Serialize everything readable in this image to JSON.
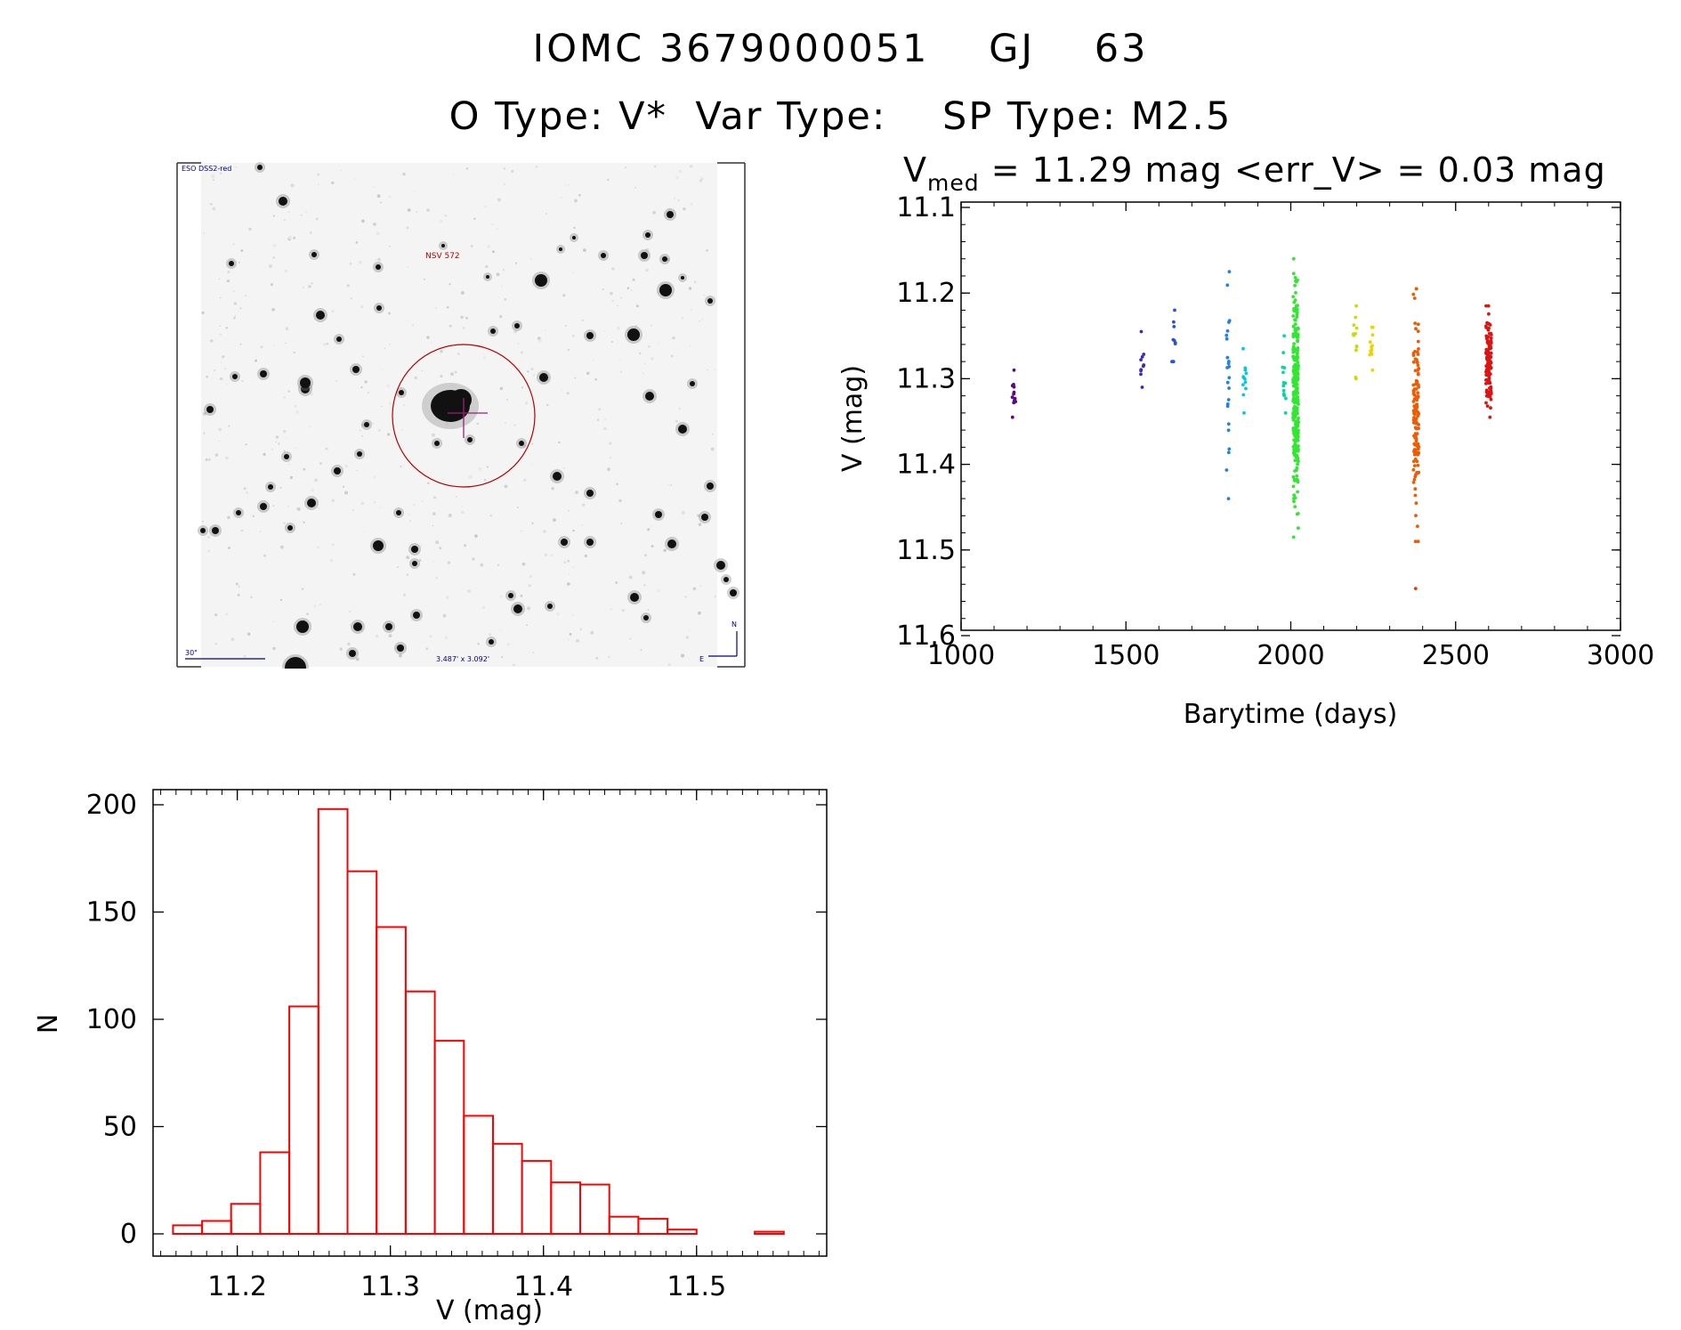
{
  "header": {
    "line1": "IOMC 3679000051    GJ    63",
    "line2": "O Type: V*  Var Type:    SP Type: M2.5"
  },
  "finder": {
    "survey_label": "ESO DSS2-red",
    "target_label": "NSV 572",
    "scale_label": "30\"",
    "fov_label": "3.487' x 3.092'",
    "north_label": "N",
    "east_label": "E",
    "colors": {
      "background": "#f4f4f4",
      "circle": "#b40000",
      "crosshair": "#9a1f7a",
      "annotation": "#00008b"
    }
  },
  "lightcurve": {
    "title_prefix": "V",
    "title_sub": "med",
    "title_rest": " = 11.29 mag <err_V> = 0.03 mag",
    "xlabel": "Barytime (days)",
    "ylabel": "V (mag)",
    "xticks": [
      "1000",
      "1500",
      "2000",
      "2500",
      "3000"
    ],
    "yticks": [
      "11.1",
      "11.2",
      "11.3",
      "11.4",
      "11.5",
      "11.6"
    ]
  },
  "histogram": {
    "xlabel": "V (mag)",
    "ylabel": "N",
    "xticks": [
      "11.2",
      "11.3",
      "11.4",
      "11.5"
    ],
    "yticks": [
      "0",
      "50",
      "100",
      "150",
      "200"
    ],
    "bar_color": "#ff0000"
  },
  "chart_data": [
    {
      "type": "scatter",
      "title": "V_med = 11.29 mag <err_V> = 0.03 mag",
      "xlabel": "Barytime (days)",
      "ylabel": "V (mag)",
      "xlim": [
        1000,
        3000
      ],
      "ylim": [
        11.6,
        11.1
      ],
      "y_inverted": true,
      "groups": [
        {
          "x": 1160,
          "ymin": 11.29,
          "ymax": 11.345,
          "n": 12,
          "color": "#5a0a82"
        },
        {
          "x": 1550,
          "ymin": 11.245,
          "ymax": 11.31,
          "n": 10,
          "color": "#3c28c8"
        },
        {
          "x": 1645,
          "ymin": 11.22,
          "ymax": 11.28,
          "n": 9,
          "color": "#2850dc"
        },
        {
          "x": 1810,
          "ymin": 11.175,
          "ymax": 11.44,
          "n": 24,
          "color": "#1e82e6"
        },
        {
          "x": 1860,
          "ymin": 11.265,
          "ymax": 11.34,
          "n": 12,
          "color": "#00c8e6"
        },
        {
          "x": 1980,
          "ymin": 11.25,
          "ymax": 11.34,
          "n": 14,
          "color": "#00dc96"
        },
        {
          "x": 2015,
          "ymin": 11.16,
          "ymax": 11.485,
          "n": 260,
          "color": "#32e632"
        },
        {
          "x": 2195,
          "ymin": 11.215,
          "ymax": 11.3,
          "n": 12,
          "color": "#c8dc00"
        },
        {
          "x": 2245,
          "ymin": 11.24,
          "ymax": 11.29,
          "n": 12,
          "color": "#f0d200"
        },
        {
          "x": 2380,
          "ymin": 11.195,
          "ymax": 11.49,
          "n": 130,
          "color": "#f05a00"
        },
        {
          "x": 2380,
          "ymin": 11.545,
          "ymax": 11.545,
          "n": 1,
          "color": "#f03c00"
        },
        {
          "x": 2600,
          "ymin": 11.215,
          "ymax": 11.345,
          "n": 130,
          "color": "#dc1414"
        }
      ]
    },
    {
      "type": "bar",
      "subtype": "histogram",
      "xlabel": "V (mag)",
      "ylabel": "N",
      "xlim": [
        11.145,
        11.585
      ],
      "ylim": [
        0,
        205
      ],
      "bin_width": 0.019,
      "bins_start": [
        11.158,
        11.177,
        11.196,
        11.215,
        11.234,
        11.253,
        11.272,
        11.291,
        11.31,
        11.329,
        11.348,
        11.367,
        11.386,
        11.405,
        11.424,
        11.443,
        11.462,
        11.481,
        11.5,
        11.519,
        11.538
      ],
      "values": [
        4,
        6,
        14,
        38,
        106,
        198,
        169,
        143,
        113,
        90,
        55,
        42,
        34,
        24,
        23,
        8,
        7,
        2,
        0,
        0,
        1
      ]
    }
  ]
}
